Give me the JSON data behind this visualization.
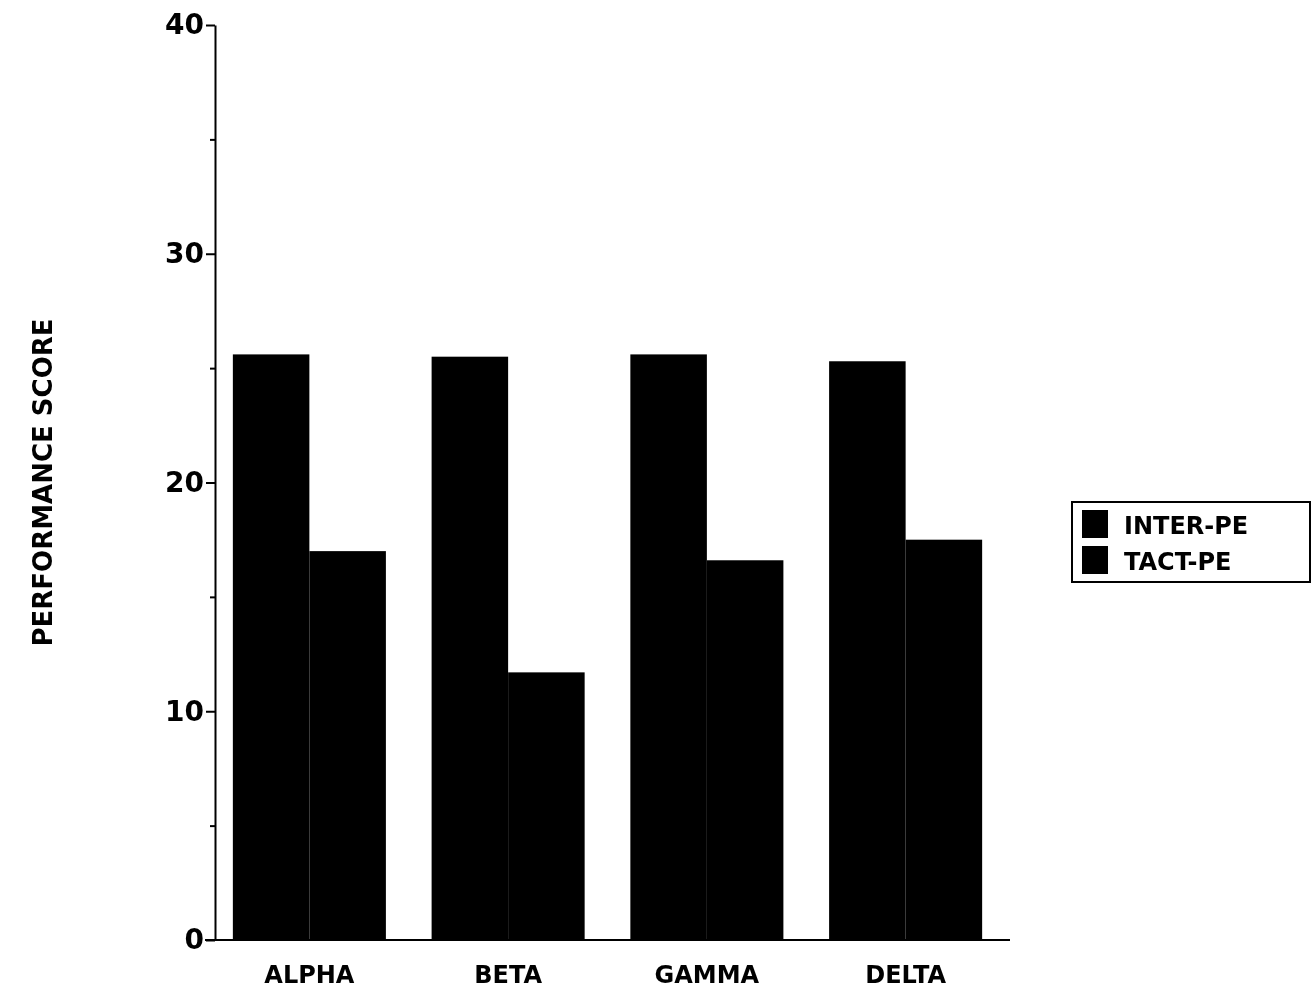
{
  "chart_data": {
    "type": "bar",
    "ylabel": "PERFORMANCE SCORE",
    "categories": [
      "ALPHA",
      "BETA",
      "GAMMA",
      "DELTA"
    ],
    "series": [
      {
        "name": "INTER-PE",
        "color": "#000000",
        "values": [
          25.6,
          25.5,
          25.6,
          25.3
        ]
      },
      {
        "name": "TACT-PE",
        "color": "#000000",
        "values": [
          17.0,
          11.7,
          16.6,
          17.5
        ]
      }
    ],
    "ylim": [
      0,
      40
    ],
    "yticks": [
      0,
      {
        "value": 5,
        "label": null
      },
      10,
      {
        "value": 15,
        "label": null
      },
      20,
      {
        "value": 25,
        "label": null
      },
      30,
      {
        "value": 35,
        "label": null
      },
      40
    ],
    "grid": false,
    "legend": "right"
  }
}
